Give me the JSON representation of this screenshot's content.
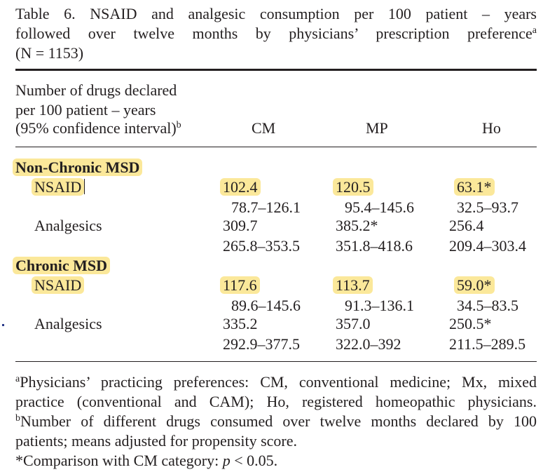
{
  "caption": {
    "line1": "Table 6.  NSAID and analgesic consumption per 100 patient – years",
    "line2_text": "followed over twelve months by physicians’ prescription preference",
    "line2_sup": "a",
    "line3": "(N = 1153)"
  },
  "header": {
    "stub_line1": "Number of drugs declared",
    "stub_line2": "per 100 patient – years",
    "stub_line3": "(95% confidence interval)",
    "stub_sup": "b",
    "col_cm": "CM",
    "col_mp": "MP",
    "col_ho": "Ho"
  },
  "groups": [
    {
      "title": "Non-Chronic MSD",
      "rows": [
        {
          "label": "NSAID",
          "cm": "102.4",
          "mp": "120.5",
          "ho": "63.1*",
          "cm_ci": "78.7–126.1",
          "mp_ci": "95.4–145.6",
          "ho_ci": "32.5–93.7"
        },
        {
          "label": "Analgesics",
          "cm": "309.7",
          "mp": "385.2*",
          "ho": "256.4",
          "cm_ci": "265.8–353.5",
          "mp_ci": "351.8–418.6",
          "ho_ci": "209.4–303.4"
        }
      ]
    },
    {
      "title": "Chronic MSD",
      "rows": [
        {
          "label": "NSAID",
          "cm": "117.6",
          "mp": "113.7",
          "ho": "59.0*",
          "cm_ci": "89.6–145.6",
          "mp_ci": "91.3–136.1",
          "ho_ci": "34.5–83.5"
        },
        {
          "label": "Analgesics",
          "cm": "335.2",
          "mp": "357.0",
          "ho": "250.5*",
          "cm_ci": "292.9–377.5",
          "mp_ci": "322.0–392",
          "ho_ci": "211.5–289.5"
        }
      ]
    }
  ],
  "footnotes": {
    "a_sup": "a",
    "a_line1": "Physicians’ practicing preferences: CM, conventional medicine; Mx, mixed",
    "a_line2": "practice (conventional and CAM); Ho, registered homeopathic physicians.",
    "b_sup": "b",
    "b_line1": "Number of different drugs consumed over twelve months declared by 100",
    "b_line2": "patients; means adjusted for propensity score.",
    "star_prefix": "*Comparison with CM category: ",
    "star_p": "p",
    "star_suffix": " < 0.05."
  }
}
